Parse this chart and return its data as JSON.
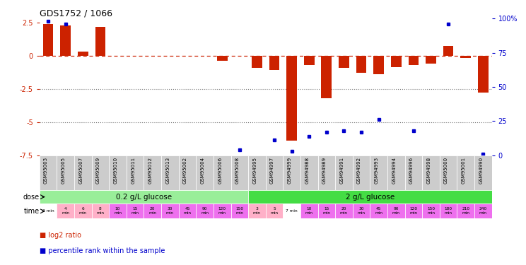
{
  "title": "GDS1752 / 1066",
  "samples": [
    "GSM95003",
    "GSM95005",
    "GSM95007",
    "GSM95009",
    "GSM95010",
    "GSM95011",
    "GSM95012",
    "GSM95013",
    "GSM95002",
    "GSM95004",
    "GSM95006",
    "GSM95008",
    "GSM94995",
    "GSM94997",
    "GSM94999",
    "GSM94988",
    "GSM94989",
    "GSM94991",
    "GSM94992",
    "GSM94993",
    "GSM94994",
    "GSM94996",
    "GSM94998",
    "GSM95000",
    "GSM95001",
    "GSM94990"
  ],
  "log2_ratio": [
    2.4,
    2.3,
    0.3,
    2.2,
    0.0,
    0.0,
    0.0,
    0.0,
    0.0,
    0.0,
    -0.4,
    0.0,
    -0.9,
    -1.1,
    -6.4,
    -0.7,
    -3.2,
    -0.9,
    -1.3,
    -1.4,
    -0.85,
    -0.7,
    -0.6,
    0.75,
    -0.15,
    -2.8
  ],
  "percentile": [
    98,
    96,
    null,
    null,
    null,
    null,
    null,
    null,
    null,
    null,
    null,
    4,
    null,
    11,
    3,
    14,
    17,
    18,
    17,
    26,
    null,
    18,
    null,
    96,
    null,
    1
  ],
  "time_labels": [
    "2 min",
    "4\nmin",
    "6\nmin",
    "8\nmin",
    "10\nmin",
    "15\nmin",
    "20\nmin",
    "30\nmin",
    "45\nmin",
    "90\nmin",
    "120\nmin",
    "150\nmin",
    "3\nmin",
    "5\nmin",
    "7 min",
    "10\nmin",
    "15\nmin",
    "20\nmin",
    "30\nmin",
    "45\nmin",
    "90\nmin",
    "120\nmin",
    "150\nmin",
    "180\nmin",
    "210\nmin",
    "240\nmin"
  ],
  "dose_groups": [
    {
      "label": "0.2 g/L glucose",
      "start": 0,
      "end": 11,
      "color": "#99EE99"
    },
    {
      "label": "2 g/L glucose",
      "start": 12,
      "end": 25,
      "color": "#44DD44"
    }
  ],
  "time_colors": [
    "#FFFFFF",
    "#FFB0C8",
    "#FFB0C8",
    "#FFB0C8",
    "#EE70EE",
    "#EE70EE",
    "#EE70EE",
    "#EE70EE",
    "#EE70EE",
    "#EE70EE",
    "#EE70EE",
    "#EE70EE",
    "#FFB0C8",
    "#FFB0C8",
    "#FFFFFF",
    "#EE70EE",
    "#EE70EE",
    "#EE70EE",
    "#EE70EE",
    "#EE70EE",
    "#EE70EE",
    "#EE70EE",
    "#EE70EE",
    "#EE70EE",
    "#EE70EE",
    "#EE70EE"
  ],
  "ylim_left": [
    -7.5,
    2.8
  ],
  "ylim_right": [
    0,
    100
  ],
  "bar_color": "#CC2200",
  "dot_color": "#0000CC",
  "ref_line_color": "#CC2200",
  "grid_line_color": "#777777",
  "sample_bg_color": "#CCCCCC",
  "legend_bar_color": "#CC2200",
  "legend_dot_color": "#0000CC"
}
